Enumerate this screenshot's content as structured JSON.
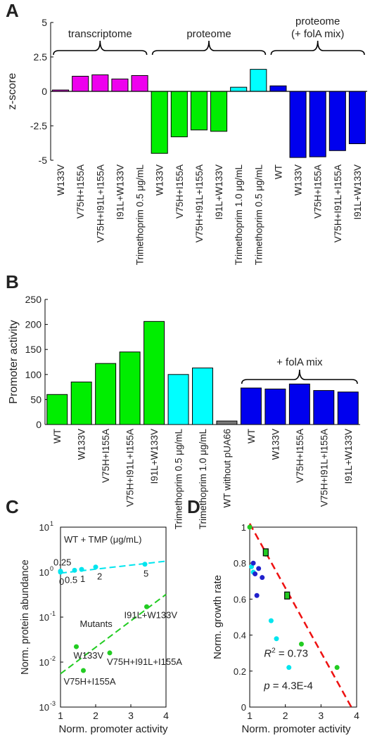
{
  "chart_data": [
    {
      "panel": "A",
      "type": "bar",
      "ylabel": "z-score",
      "ylim": [
        -5,
        5
      ],
      "yticks": [
        "-5",
        "-2.5",
        "0",
        "2.5",
        "5"
      ],
      "groups": [
        {
          "label": "transcriptome",
          "label2": ""
        },
        {
          "label": "proteome",
          "label2": ""
        },
        {
          "label": "proteome",
          "label2": "(+ folA mix)"
        }
      ],
      "categories": [
        "W133V",
        "V75H+I155A",
        "V75H+I91L+I155A",
        "I91L+W133V",
        "Trimethoprim 0.5 μg/mL",
        "W133V",
        "V75H+I155A",
        "V75H+I91L+I155A",
        "I91L+W133V",
        "Trimethoprim 1.0 μg/mL",
        "Trimethoprim 0.5 μg/mL",
        "WT",
        "W133V",
        "V75H+I155A",
        "V75H+I91L+I155A",
        "I91L+W133V"
      ],
      "values": [
        0.1,
        1.1,
        1.2,
        0.9,
        1.15,
        -4.5,
        -3.3,
        -2.8,
        -2.9,
        0.3,
        1.6,
        0.4,
        -4.8,
        -4.75,
        -4.3,
        -3.8
      ],
      "colors": [
        "#ee00ee",
        "#ee00ee",
        "#ee00ee",
        "#ee00ee",
        "#ee00ee",
        "#00ee00",
        "#00ee00",
        "#00ee00",
        "#00ee00",
        "#00ffff",
        "#00ffff",
        "#0000ee",
        "#0000ee",
        "#0000ee",
        "#0000ee",
        "#0000ee"
      ]
    },
    {
      "panel": "B",
      "type": "bar",
      "ylabel": "Promoter activity",
      "ylim": [
        0,
        250
      ],
      "yticks": [
        "0",
        "50",
        "100",
        "150",
        "200",
        "250"
      ],
      "group_label": "+ folA mix",
      "categories": [
        "WT",
        "W133V",
        "V75H+I155A",
        "V75H+I91L+I155A",
        "I91L+W133V",
        "Trimethoprim 0.5 μg/mL",
        "Trimethoprim 1.0 μg/mL",
        "WT without pUA66",
        "WT",
        "W133V",
        "V75H+I155A",
        "V75H+I91L+I155A",
        "I91L+W133V"
      ],
      "values": [
        60,
        85,
        122,
        145,
        206,
        100,
        113,
        7,
        73,
        71,
        81,
        68,
        65
      ],
      "colors": [
        "#00ee00",
        "#00ee00",
        "#00ee00",
        "#00ee00",
        "#00ee00",
        "#00ffff",
        "#00ffff",
        "#777777",
        "#0000ee",
        "#0000ee",
        "#0000ee",
        "#0000ee",
        "#0000ee"
      ]
    },
    {
      "panel": "C",
      "type": "scatter",
      "xlabel": "Norm. promoter activity",
      "ylabel": "Norm. protein abundance",
      "xlim": [
        1,
        4
      ],
      "ylim_log10": [
        -3,
        1
      ],
      "xticks": [
        "1",
        "2",
        "3",
        "4"
      ],
      "yticks": [
        "10",
        "10",
        "10",
        "10",
        "10"
      ],
      "ytick_exponents": [
        "-3",
        "-2",
        "-1",
        "0",
        "1"
      ],
      "annotations": {
        "tmp_title": "WT + TMP (μg/mL)",
        "mutants_title": "Mutants"
      },
      "series": [
        {
          "name": "",
          "color": "#00e5ee",
          "points": [
            {
              "x": 1.0,
              "y": 1.0,
              "label": "0"
            },
            {
              "x": 1.0,
              "y": 1.05,
              "label": "0.25"
            },
            {
              "x": 1.4,
              "y": 1.1,
              "label": "0.5"
            },
            {
              "x": 1.6,
              "y": 1.15,
              "label": "1"
            },
            {
              "x": 2.0,
              "y": 1.3,
              "label": "2"
            },
            {
              "x": 3.4,
              "y": 1.5,
              "label": "5"
            }
          ]
        },
        {
          "name": "",
          "color": "#22cc22",
          "points": [
            {
              "x": 1.45,
              "y": 0.022,
              "label": "W133V"
            },
            {
              "x": 1.65,
              "y": 0.0065,
              "label": "V75H+I155A"
            },
            {
              "x": 2.4,
              "y": 0.016,
              "label": "V75H+I91L+I155A"
            },
            {
              "x": 3.45,
              "y": 0.17,
              "label": "I91L+W133V"
            }
          ]
        }
      ]
    },
    {
      "panel": "D",
      "type": "scatter",
      "xlabel": "Norm. promoter activity",
      "ylabel": "Norm. growth rate",
      "xlim": [
        1,
        4
      ],
      "ylim": [
        0,
        1
      ],
      "xticks": [
        "1",
        "2",
        "3",
        "4"
      ],
      "yticks": [
        "0",
        "0.2",
        "0.4",
        "0.6",
        "0.8",
        "1"
      ],
      "r2_label": "R",
      "r2_value": "= 0.73",
      "p_label": "p",
      "p_value": "= 4.3E-4",
      "series": [
        {
          "name": "",
          "color": "#22cc22",
          "points": [
            {
              "x": 1.0,
              "y": 1.0
            },
            {
              "x": 1.45,
              "y": 0.85
            },
            {
              "x": 2.05,
              "y": 0.62
            },
            {
              "x": 2.45,
              "y": 0.35
            },
            {
              "x": 3.45,
              "y": 0.22
            }
          ]
        },
        {
          "name": "",
          "color": "#00e5ee",
          "points": [
            {
              "x": 1.05,
              "y": 0.78
            },
            {
              "x": 1.1,
              "y": 0.75
            },
            {
              "x": 1.6,
              "y": 0.48
            },
            {
              "x": 1.75,
              "y": 0.38
            },
            {
              "x": 2.1,
              "y": 0.22
            }
          ]
        },
        {
          "name": "",
          "color": "#2020cc",
          "points": [
            {
              "x": 1.1,
              "y": 0.8
            },
            {
              "x": 1.15,
              "y": 0.74
            },
            {
              "x": 1.2,
              "y": 0.62
            },
            {
              "x": 1.25,
              "y": 0.77
            },
            {
              "x": 1.35,
              "y": 0.72
            }
          ]
        }
      ],
      "error_points": [
        {
          "x": 1.45,
          "y": 0.86
        },
        {
          "x": 2.05,
          "y": 0.62
        }
      ],
      "fit": {
        "x": [
          1.0,
          4.0
        ],
        "y": [
          1.02,
          -0.05
        ]
      }
    }
  ],
  "panel_letters": [
    "A",
    "B",
    "C",
    "D"
  ]
}
